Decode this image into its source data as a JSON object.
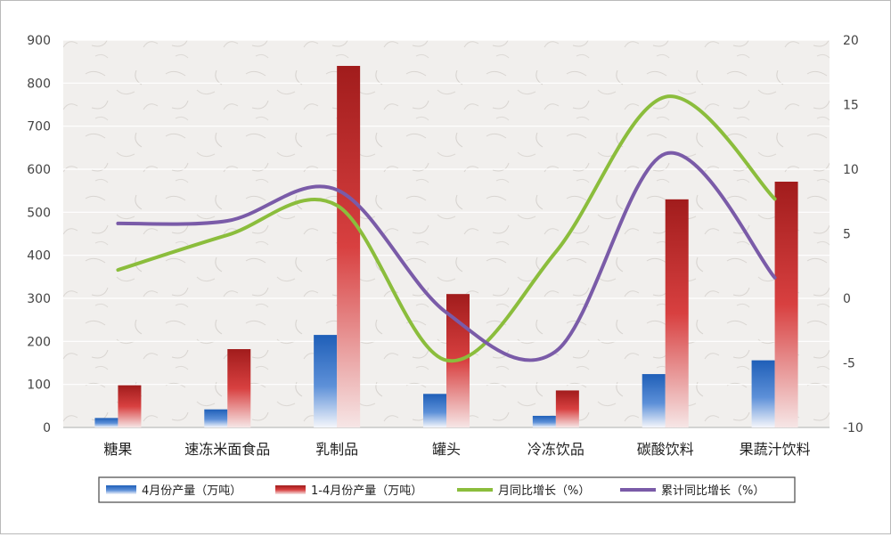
{
  "chart_data": {
    "type": "bar",
    "categories": [
      "糖果",
      "速冻米面食品",
      "乳制品",
      "罐头",
      "冷冻饮品",
      "碳酸饮料",
      "果蔬汁饮料"
    ],
    "series": [
      {
        "name": "4月份产量（万吨）",
        "type": "bar",
        "axis": "left",
        "color": "#2f6fc4",
        "values": [
          22,
          42,
          215,
          78,
          27,
          124,
          156
        ]
      },
      {
        "name": "1-4月份产量（万吨）",
        "type": "bar",
        "axis": "left",
        "color": "#c62828",
        "values": [
          98,
          182,
          840,
          310,
          86,
          530,
          571
        ]
      },
      {
        "name": "月同比增长（%）",
        "type": "line",
        "axis": "right",
        "color": "#8bbd3c",
        "values": [
          2.2,
          4.9,
          7.2,
          -4.8,
          3.6,
          15.6,
          7.7
        ]
      },
      {
        "name": "累计同比增长（%）",
        "type": "line",
        "axis": "right",
        "color": "#7a5ba8",
        "values": [
          5.8,
          6.0,
          8.4,
          -1.1,
          -4.1,
          11.2,
          1.6
        ]
      }
    ],
    "y_left": {
      "min": 0,
      "max": 900,
      "step": 100
    },
    "y_right": {
      "min": -10,
      "max": 20,
      "step": 5
    },
    "grid": true,
    "legend_position": "bottom",
    "title": "",
    "xlabel": "",
    "ylabel": ""
  }
}
